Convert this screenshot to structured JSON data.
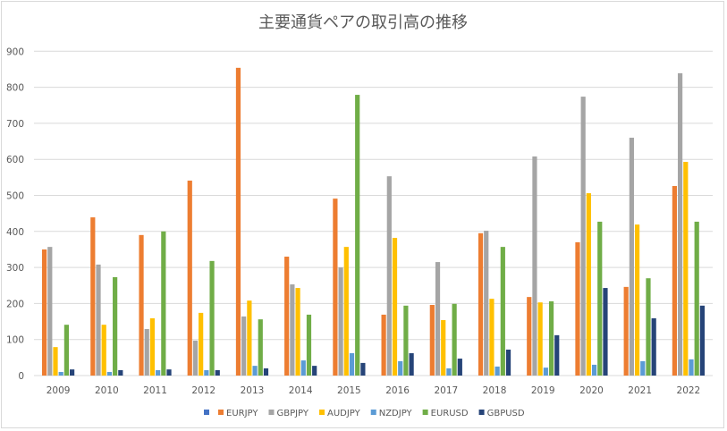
{
  "chart_data": {
    "type": "bar",
    "title": "主要通貨ペアの取引高の推移",
    "xlabel": "",
    "ylabel": "",
    "ylim": [
      0,
      900
    ],
    "yticks": [
      0,
      100,
      200,
      300,
      400,
      500,
      600,
      700,
      800,
      900
    ],
    "grid": true,
    "legend_position": "bottom",
    "categories": [
      "2009",
      "2010",
      "2011",
      "2012",
      "2013",
      "2014",
      "2015",
      "2016",
      "2017",
      "2018",
      "2019",
      "2020",
      "2021",
      "2022"
    ],
    "series": [
      {
        "name": "EURJPY",
        "color": "#ed7d31",
        "values": [
          350,
          439,
          390,
          541,
          854,
          330,
          491,
          169,
          196,
          395,
          218,
          370,
          246,
          526
        ]
      },
      {
        "name": "GBPJPY",
        "color": "#a5a5a5",
        "values": [
          357,
          308,
          129,
          97,
          164,
          253,
          300,
          553,
          315,
          402,
          608,
          774,
          660,
          839
        ]
      },
      {
        "name": "AUDJPY",
        "color": "#ffc000",
        "values": [
          79,
          141,
          159,
          174,
          208,
          243,
          357,
          382,
          154,
          213,
          203,
          506,
          419,
          593
        ]
      },
      {
        "name": "NZDJPY",
        "color": "#5b9bd5",
        "values": [
          10,
          10,
          15,
          15,
          27,
          42,
          62,
          40,
          20,
          25,
          22,
          30,
          40,
          45
        ]
      },
      {
        "name": "EURUSD",
        "color": "#70ad47",
        "values": [
          141,
          273,
          400,
          318,
          156,
          169,
          779,
          194,
          199,
          357,
          206,
          427,
          270,
          427
        ]
      },
      {
        "name": "GBPUSD",
        "color": "#264478",
        "values": [
          17,
          15,
          17,
          15,
          20,
          27,
          35,
          62,
          47,
          72,
          112,
          243,
          159,
          194
        ]
      }
    ],
    "legend_marker_color": "#4472c4"
  }
}
